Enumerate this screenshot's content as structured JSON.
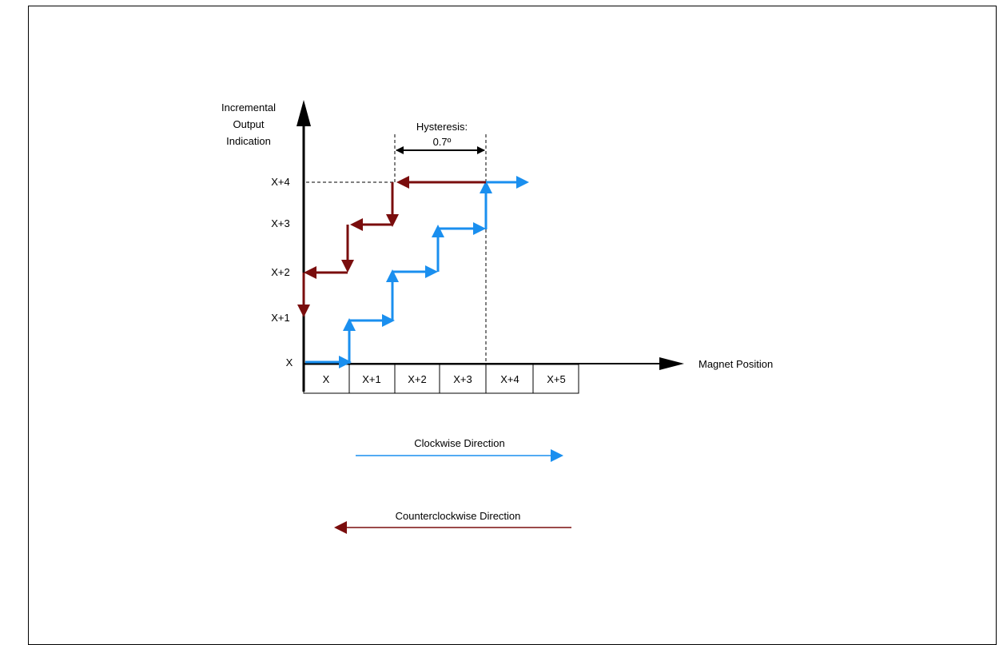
{
  "y_axis": {
    "title_lines": [
      "Incremental",
      "Output",
      "Indication"
    ],
    "ticks": [
      "X",
      "X+1",
      "X+2",
      "X+3",
      "X+4"
    ]
  },
  "x_axis": {
    "title": "Magnet Position",
    "cells": [
      "X",
      "X+1",
      "X+2",
      "X+3",
      "X+4",
      "X+5"
    ]
  },
  "hysteresis": {
    "label": "Hysteresis:",
    "value": "0.7º"
  },
  "legend": {
    "clockwise": "Clockwise Direction",
    "counterclockwise": "Counterclockwise Direction"
  },
  "colors": {
    "clockwise": "#1a8fef",
    "counterclockwise": "#7a0d0d",
    "axis": "#000000"
  }
}
